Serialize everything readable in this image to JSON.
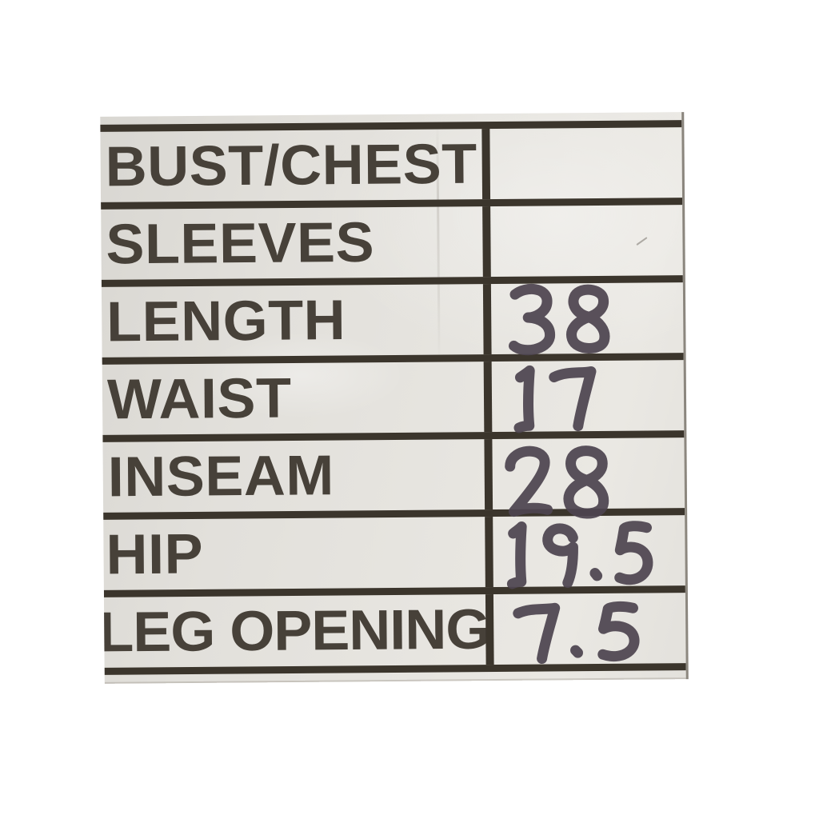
{
  "chart": {
    "type": "measurement-table",
    "rows": [
      {
        "label": "BUST/CHEST",
        "value": ""
      },
      {
        "label": "SLEEVES",
        "value": ""
      },
      {
        "label": "LENGTH",
        "value": "38"
      },
      {
        "label": "WAIST",
        "value": "17"
      },
      {
        "label": "INSEAM",
        "value": "28"
      },
      {
        "label": "HIP",
        "value": "19.5"
      },
      {
        "label": "LEG OPENING",
        "value": "7.5"
      }
    ],
    "colors": {
      "background": "#ffffff",
      "paper": "#e6e4df",
      "grid_line": "#3b352c",
      "printed_text": "#474139",
      "marker_ink": "#4e4550"
    }
  }
}
